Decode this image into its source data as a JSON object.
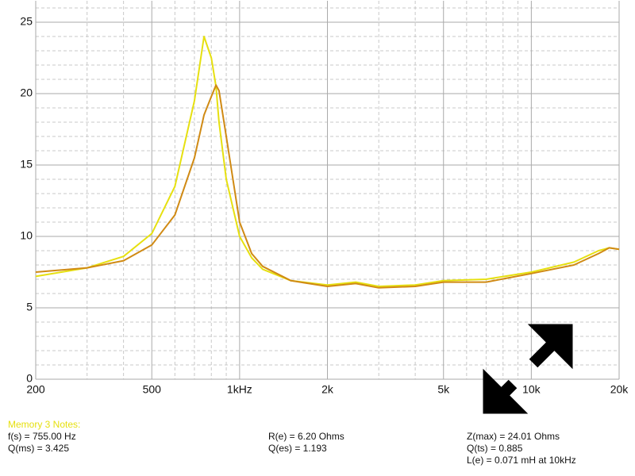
{
  "chart_data": {
    "type": "line",
    "x": [
      200,
      300,
      400,
      500,
      600,
      700,
      755,
      800,
      830,
      850,
      900,
      1000,
      1100,
      1200,
      1500,
      2000,
      2500,
      3000,
      4000,
      5000,
      7000,
      10000,
      14000,
      17000,
      18500,
      20000
    ],
    "series": [
      {
        "color": "#e6e010",
        "values": [
          7.2,
          7.8,
          8.6,
          10.2,
          13.5,
          19.5,
          24.0,
          22.5,
          20.5,
          18,
          14,
          10,
          8.5,
          7.7,
          6.9,
          6.6,
          6.8,
          6.5,
          6.6,
          6.9,
          7.0,
          7.5,
          8.2,
          9.0,
          9.2,
          9.1
        ]
      },
      {
        "color": "#d08a14",
        "values": [
          7.5,
          7.8,
          8.3,
          9.4,
          11.5,
          15.5,
          18.5,
          19.8,
          20.6,
          20.2,
          17,
          11,
          8.8,
          7.9,
          6.9,
          6.5,
          6.7,
          6.4,
          6.5,
          6.8,
          6.8,
          7.4,
          8.0,
          8.8,
          9.2,
          9.1
        ]
      }
    ],
    "xlim": [
      200,
      20000
    ],
    "log_x": true,
    "xticks": [
      200,
      500,
      {
        "value": 1000,
        "label": "1kHz"
      },
      {
        "value": 2000,
        "label": "2k"
      },
      {
        "value": 5000,
        "label": "5k"
      },
      {
        "value": 10000,
        "label": "10k"
      },
      {
        "value": 20000,
        "label": "20k"
      }
    ],
    "minor_xticks": [
      300,
      400,
      600,
      700,
      800,
      900,
      3000,
      4000,
      6000,
      7000,
      8000,
      9000,
      30000
    ],
    "ylim": [
      0,
      26.5
    ],
    "yticks": [
      0,
      5,
      10,
      15,
      20,
      25
    ],
    "minor_yticks": [
      1,
      2,
      3,
      4,
      6,
      7,
      8,
      9,
      11,
      12,
      13,
      14,
      16,
      17,
      18,
      19,
      21,
      22,
      23,
      24,
      26
    ],
    "grid": true,
    "notes": {
      "heading": "Memory 3 Notes:",
      "heading_color": "#e6e010",
      "columns": [
        [
          "f(s) = 755.00 Hz",
          "Q(ms) = 3.425"
        ],
        [
          "R(e) = 6.20 Ohms",
          "Q(es) = 1.193"
        ],
        [
          "Z(max) = 24.01 Ohms",
          "Q(ts) = 0.885",
          "L(e) = 0.071 mH at 10kHz"
        ]
      ]
    }
  }
}
